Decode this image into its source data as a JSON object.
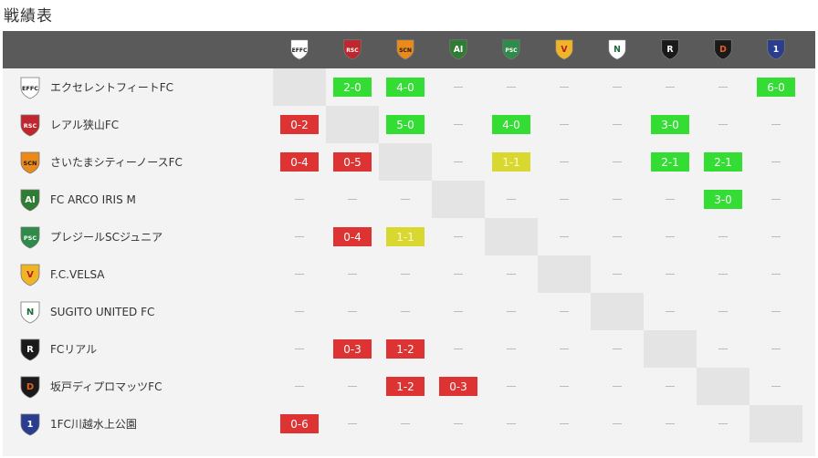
{
  "page_title": "戦績表",
  "colors": {
    "win": "#33dd33",
    "loss": "#dd3333",
    "draw": "#d8d830",
    "header": "#5a5a5a"
  },
  "teams": [
    {
      "name": "エクセレントフィートFC",
      "logo": "effc-crest-icon",
      "abbr": "EFFC",
      "fg": "#222",
      "bg": "#ffffff"
    },
    {
      "name": "レアル狭山FC",
      "logo": "rsfc-shield-icon",
      "abbr": "RSC",
      "fg": "#ffffff",
      "bg": "#c0262d"
    },
    {
      "name": "さいたまシティーノースFC",
      "logo": "scn-crest-icon",
      "abbr": "SCN",
      "fg": "#1b1b1b",
      "bg": "#e98a1a"
    },
    {
      "name": "FC ARCO IRIS M",
      "logo": "arco-iris-crest-icon",
      "abbr": "AI",
      "fg": "#ffffff",
      "bg": "#2e7d32"
    },
    {
      "name": "プレジールSCジュニア",
      "logo": "plaisir-crest-icon",
      "abbr": "PSC",
      "fg": "#ffffff",
      "bg": "#2e8b4a"
    },
    {
      "name": "F.C.VELSA",
      "logo": "velsa-crest-icon",
      "abbr": "V",
      "fg": "#b71c1c",
      "bg": "#f0b428"
    },
    {
      "name": "SUGITO UNITED FC",
      "logo": "sugito-crest-icon",
      "abbr": "N",
      "fg": "#1f6b3a",
      "bg": "#ffffff"
    },
    {
      "name": "FCリアル",
      "logo": "fc-real-crest-icon",
      "abbr": "R",
      "fg": "#ffffff",
      "bg": "#1a1a1a"
    },
    {
      "name": "坂戸ディプロマッツFC",
      "logo": "sakado-crest-icon",
      "abbr": "D",
      "fg": "#e06020",
      "bg": "#1a1a1a"
    },
    {
      "name": "1FC川越水上公園",
      "logo": "kawagoe-crest-icon",
      "abbr": "1",
      "fg": "#ffffff",
      "bg": "#2a3d8f"
    }
  ],
  "results": [
    [
      "self",
      "2-0",
      "4-0",
      "",
      "",
      "",
      "",
      "",
      "",
      "6-0"
    ],
    [
      "0-2",
      "self",
      "5-0",
      "",
      "4-0",
      "",
      "",
      "3-0",
      "",
      ""
    ],
    [
      "0-4",
      "0-5",
      "self",
      "",
      "1-1",
      "",
      "",
      "2-1",
      "2-1",
      ""
    ],
    [
      "",
      "",
      "",
      "self",
      "",
      "",
      "",
      "",
      "3-0",
      ""
    ],
    [
      "",
      "0-4",
      "1-1",
      "",
      "self",
      "",
      "",
      "",
      "",
      ""
    ],
    [
      "",
      "",
      "",
      "",
      "",
      "self",
      "",
      "",
      "",
      ""
    ],
    [
      "",
      "",
      "",
      "",
      "",
      "",
      "self",
      "",
      "",
      ""
    ],
    [
      "",
      "0-3",
      "1-2",
      "",
      "",
      "",
      "",
      "self",
      "",
      ""
    ],
    [
      "",
      "",
      "1-2",
      "0-3",
      "",
      "",
      "",
      "",
      "self",
      ""
    ],
    [
      "0-6",
      "",
      "",
      "",
      "",
      "",
      "",
      "",
      "",
      "self"
    ]
  ]
}
